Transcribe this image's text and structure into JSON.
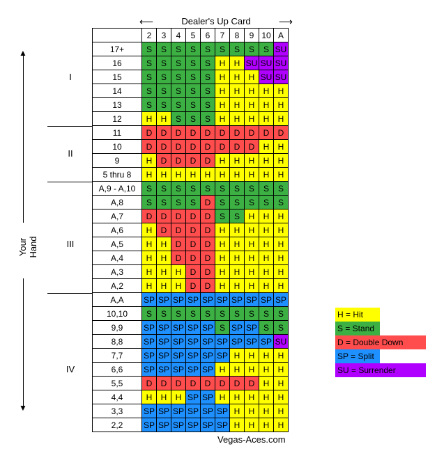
{
  "dealer_caption": "Dealer's Up Card",
  "dealer_cards": [
    "2",
    "3",
    "4",
    "5",
    "6",
    "7",
    "8",
    "9",
    "10",
    "A"
  ],
  "rows": [
    {
      "label": "17+",
      "cells": [
        "S",
        "S",
        "S",
        "S",
        "S",
        "S",
        "S",
        "S",
        "S",
        "SU"
      ]
    },
    {
      "label": "16",
      "cells": [
        "S",
        "S",
        "S",
        "S",
        "S",
        "H",
        "H",
        "SU",
        "SU",
        "SU"
      ]
    },
    {
      "label": "15",
      "cells": [
        "S",
        "S",
        "S",
        "S",
        "S",
        "H",
        "H",
        "H",
        "SU",
        "SU"
      ]
    },
    {
      "label": "14",
      "cells": [
        "S",
        "S",
        "S",
        "S",
        "S",
        "H",
        "H",
        "H",
        "H",
        "H"
      ]
    },
    {
      "label": "13",
      "cells": [
        "S",
        "S",
        "S",
        "S",
        "S",
        "H",
        "H",
        "H",
        "H",
        "H"
      ]
    },
    {
      "label": "12",
      "cells": [
        "H",
        "H",
        "S",
        "S",
        "S",
        "H",
        "H",
        "H",
        "H",
        "H"
      ]
    },
    {
      "label": "11",
      "cells": [
        "D",
        "D",
        "D",
        "D",
        "D",
        "D",
        "D",
        "D",
        "D",
        "D"
      ]
    },
    {
      "label": "10",
      "cells": [
        "D",
        "D",
        "D",
        "D",
        "D",
        "D",
        "D",
        "D",
        "H",
        "H"
      ]
    },
    {
      "label": "9",
      "cells": [
        "H",
        "D",
        "D",
        "D",
        "D",
        "H",
        "H",
        "H",
        "H",
        "H"
      ]
    },
    {
      "label": "5 thru 8",
      "cells": [
        "H",
        "H",
        "H",
        "H",
        "H",
        "H",
        "H",
        "H",
        "H",
        "H"
      ]
    },
    {
      "label": "A,9 - A,10",
      "cells": [
        "S",
        "S",
        "S",
        "S",
        "S",
        "S",
        "S",
        "S",
        "S",
        "S"
      ]
    },
    {
      "label": "A,8",
      "cells": [
        "S",
        "S",
        "S",
        "S",
        "D",
        "S",
        "S",
        "S",
        "S",
        "S"
      ]
    },
    {
      "label": "A,7",
      "cells": [
        "D",
        "D",
        "D",
        "D",
        "D",
        "S",
        "S",
        "H",
        "H",
        "H"
      ]
    },
    {
      "label": "A,6",
      "cells": [
        "H",
        "D",
        "D",
        "D",
        "D",
        "H",
        "H",
        "H",
        "H",
        "H"
      ]
    },
    {
      "label": "A,5",
      "cells": [
        "H",
        "H",
        "D",
        "D",
        "D",
        "H",
        "H",
        "H",
        "H",
        "H"
      ]
    },
    {
      "label": "A,4",
      "cells": [
        "H",
        "H",
        "D",
        "D",
        "D",
        "H",
        "H",
        "H",
        "H",
        "H"
      ]
    },
    {
      "label": "A,3",
      "cells": [
        "H",
        "H",
        "H",
        "D",
        "D",
        "H",
        "H",
        "H",
        "H",
        "H"
      ]
    },
    {
      "label": "A,2",
      "cells": [
        "H",
        "H",
        "H",
        "D",
        "D",
        "H",
        "H",
        "H",
        "H",
        "H"
      ]
    },
    {
      "label": "A,A",
      "cells": [
        "SP",
        "SP",
        "SP",
        "SP",
        "SP",
        "SP",
        "SP",
        "SP",
        "SP",
        "SP"
      ]
    },
    {
      "label": "10,10",
      "cells": [
        "S",
        "S",
        "S",
        "S",
        "S",
        "S",
        "S",
        "S",
        "S",
        "S"
      ]
    },
    {
      "label": "9,9",
      "cells": [
        "SP",
        "SP",
        "SP",
        "SP",
        "SP",
        "S",
        "SP",
        "SP",
        "S",
        "S"
      ]
    },
    {
      "label": "8,8",
      "cells": [
        "SP",
        "SP",
        "SP",
        "SP",
        "SP",
        "SP",
        "SP",
        "SP",
        "SP",
        "SU"
      ]
    },
    {
      "label": "7,7",
      "cells": [
        "SP",
        "SP",
        "SP",
        "SP",
        "SP",
        "SP",
        "H",
        "H",
        "H",
        "H"
      ]
    },
    {
      "label": "6,6",
      "cells": [
        "SP",
        "SP",
        "SP",
        "SP",
        "SP",
        "H",
        "H",
        "H",
        "H",
        "H"
      ]
    },
    {
      "label": "5,5",
      "cells": [
        "D",
        "D",
        "D",
        "D",
        "D",
        "D",
        "D",
        "D",
        "H",
        "H"
      ]
    },
    {
      "label": "4,4",
      "cells": [
        "H",
        "H",
        "H",
        "SP",
        "SP",
        "H",
        "H",
        "H",
        "H",
        "H"
      ]
    },
    {
      "label": "3,3",
      "cells": [
        "SP",
        "SP",
        "SP",
        "SP",
        "SP",
        "SP",
        "H",
        "H",
        "H",
        "H"
      ]
    },
    {
      "label": "2,2",
      "cells": [
        "SP",
        "SP",
        "SP",
        "SP",
        "SP",
        "SP",
        "H",
        "H",
        "H",
        "H"
      ]
    }
  ],
  "sections": [
    "I",
    "II",
    "III",
    "IV"
  ],
  "your_hand": "Your Hand",
  "legend": [
    {
      "code": "H",
      "text": "H = Hit",
      "color": "#ffff00"
    },
    {
      "code": "S",
      "text": "S = Stand",
      "color": "#3cb043"
    },
    {
      "code": "D",
      "text": "D = Double Down",
      "color": "#ff4d4d"
    },
    {
      "code": "SP",
      "text": "SP = Split",
      "color": "#1e90ff"
    },
    {
      "code": "SU",
      "text": "SU = Surrender",
      "color": "#b000ff"
    }
  ],
  "site": "Vegas-Aces.com"
}
